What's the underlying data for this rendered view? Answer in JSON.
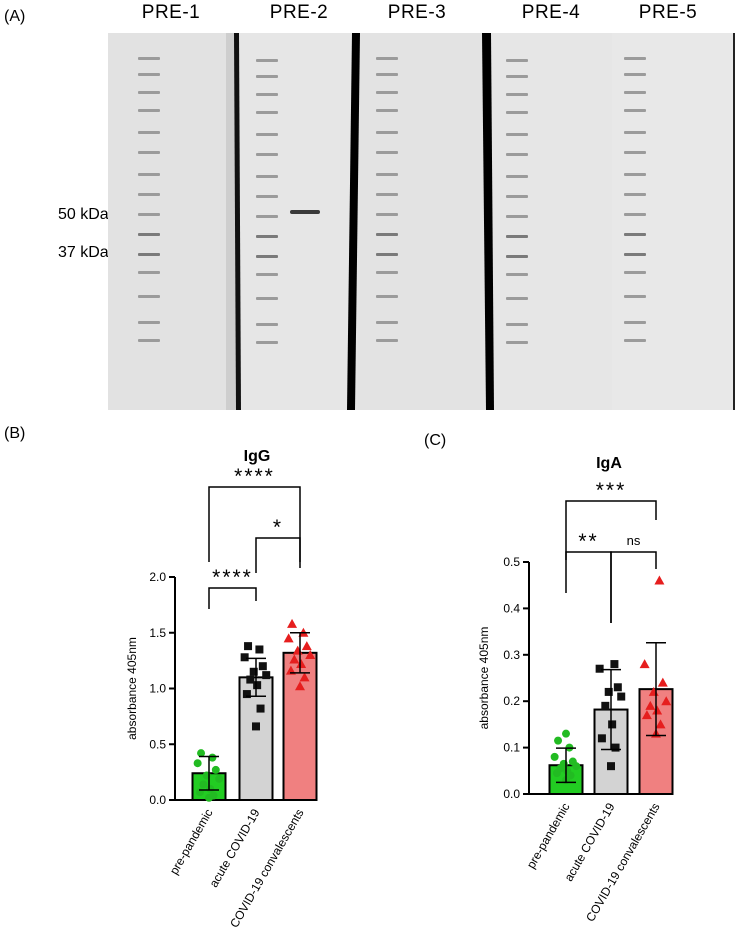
{
  "panel_labels": {
    "a": "(A)",
    "b": "(B)",
    "c": "(C)"
  },
  "blot": {
    "lanes": [
      "PRE-1",
      "PRE-2",
      "PRE-3",
      "PRE-4",
      "PRE-5"
    ],
    "markers": [
      "50 kDa",
      "37 kDa"
    ],
    "background": "#e6e6e6"
  },
  "chart_data": [
    {
      "type": "bar",
      "title": "IgG",
      "ylabel": "absorbance 405nm",
      "ylim": [
        0,
        2.0
      ],
      "yticks": [
        "0.0",
        "0.5",
        "1.0",
        "1.5",
        "2.0"
      ],
      "categories": [
        "pre-pandemic",
        "acute COVID-19",
        "COVID-19 convalescents"
      ],
      "values": [
        0.24,
        1.1,
        1.32
      ],
      "sd": [
        0.15,
        0.17,
        0.18
      ],
      "colors": [
        "#22cc22",
        "#d3d3d3",
        "#f08080"
      ],
      "marker_colors": [
        "#22bb22",
        "#111111",
        "#e61e1e"
      ],
      "markers": [
        "circle",
        "square",
        "triangle"
      ],
      "points": [
        [
          0.02,
          0.04,
          0.07,
          0.1,
          0.14,
          0.19,
          0.22,
          0.27,
          0.33,
          0.38,
          0.42
        ],
        [
          0.66,
          0.82,
          0.95,
          1.03,
          1.08,
          1.12,
          1.15,
          1.2,
          1.28,
          1.35,
          1.38
        ],
        [
          1.02,
          1.1,
          1.16,
          1.22,
          1.26,
          1.3,
          1.34,
          1.38,
          1.45,
          1.5,
          1.58
        ]
      ],
      "significance": [
        {
          "from": 0,
          "to": 1,
          "label": "****"
        },
        {
          "from": 1,
          "to": 2,
          "label": "*"
        },
        {
          "from": 0,
          "to": 2,
          "label": "****"
        }
      ]
    },
    {
      "type": "bar",
      "title": "IgA",
      "ylabel": "absorbance 405nm",
      "ylim": [
        0,
        0.5
      ],
      "yticks": [
        "0.0",
        "0.1",
        "0.2",
        "0.3",
        "0.4",
        "0.5"
      ],
      "categories": [
        "pre-pandemic",
        "acute COVID-19",
        "COVID-19 convalescents"
      ],
      "values": [
        0.062,
        0.182,
        0.226
      ],
      "sd": [
        0.037,
        0.086,
        0.1
      ],
      "colors": [
        "#22cc22",
        "#d3d3d3",
        "#f08080"
      ],
      "marker_colors": [
        "#22bb22",
        "#111111",
        "#e61e1e"
      ],
      "markers": [
        "circle",
        "square",
        "triangle"
      ],
      "points": [
        [
          0.03,
          0.04,
          0.045,
          0.05,
          0.055,
          0.06,
          0.065,
          0.07,
          0.08,
          0.1,
          0.115,
          0.13
        ],
        [
          0.06,
          0.1,
          0.12,
          0.15,
          0.19,
          0.21,
          0.22,
          0.23,
          0.27,
          0.28
        ],
        [
          0.13,
          0.15,
          0.17,
          0.18,
          0.19,
          0.2,
          0.22,
          0.24,
          0.28,
          0.46
        ]
      ],
      "significance": [
        {
          "from": 0,
          "to": 1,
          "label": "**"
        },
        {
          "from": 1,
          "to": 2,
          "label": "ns"
        },
        {
          "from": 0,
          "to": 2,
          "label": "***"
        }
      ]
    }
  ]
}
